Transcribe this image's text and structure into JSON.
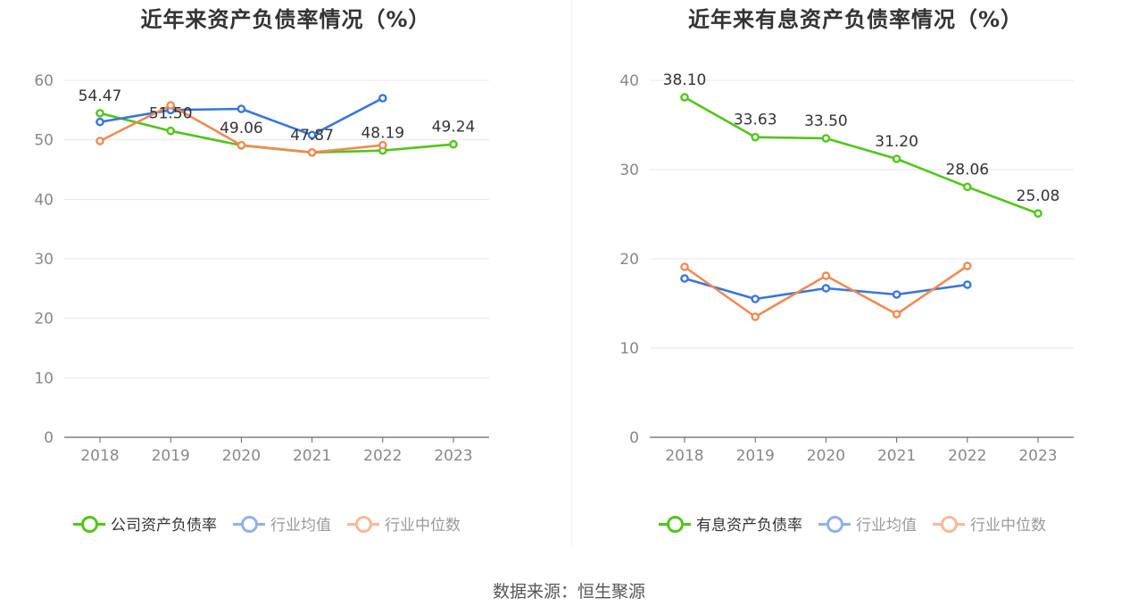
{
  "source": "数据来源：恒生聚源",
  "chart_data": [
    {
      "type": "line",
      "title": "近年来资产负债率情况（%）",
      "categories": [
        "2018",
        "2019",
        "2020",
        "2021",
        "2022",
        "2023"
      ],
      "ylim": [
        0,
        60
      ],
      "yticks": [
        "0",
        "10",
        "20",
        "30",
        "40",
        "50",
        "60"
      ],
      "grid": true,
      "legend_position": "bottom",
      "series": [
        {
          "name": "公司资产负债率",
          "color": "#52c41a",
          "values": [
            54.47,
            51.5,
            49.06,
            47.87,
            48.19,
            49.24
          ],
          "labels": [
            "54.47",
            "51.50",
            "49.06",
            "47.87",
            "48.19",
            "49.24"
          ],
          "faded": false
        },
        {
          "name": "行业均值",
          "color": "#3a75d8",
          "legend_color": "#8fb1ea",
          "values": [
            53.0,
            55.0,
            55.2,
            50.8,
            57.0,
            null
          ],
          "faded": true
        },
        {
          "name": "行业中位数",
          "color": "#ef8a55",
          "legend_color": "#f5b99a",
          "values": [
            49.8,
            55.8,
            49.1,
            47.9,
            49.1,
            null
          ],
          "faded": true
        }
      ]
    },
    {
      "type": "line",
      "title": "近年来有息资产负债率情况（%）",
      "categories": [
        "2018",
        "2019",
        "2020",
        "2021",
        "2022",
        "2023"
      ],
      "ylim": [
        0,
        40
      ],
      "yticks": [
        "0",
        "10",
        "20",
        "30",
        "40"
      ],
      "grid": true,
      "legend_position": "bottom",
      "series": [
        {
          "name": "有息资产负债率",
          "color": "#52c41a",
          "values": [
            38.1,
            33.63,
            33.5,
            31.2,
            28.06,
            25.08
          ],
          "labels": [
            "38.10",
            "33.63",
            "33.50",
            "31.20",
            "28.06",
            "25.08"
          ],
          "faded": false
        },
        {
          "name": "行业均值",
          "color": "#3a75d8",
          "legend_color": "#8fb1ea",
          "values": [
            17.8,
            15.5,
            16.7,
            16.0,
            17.1,
            null
          ],
          "faded": true
        },
        {
          "name": "行业中位数",
          "color": "#ef8a55",
          "legend_color": "#f5b99a",
          "values": [
            19.1,
            13.5,
            18.1,
            13.8,
            19.2,
            null
          ],
          "faded": true
        }
      ]
    }
  ]
}
